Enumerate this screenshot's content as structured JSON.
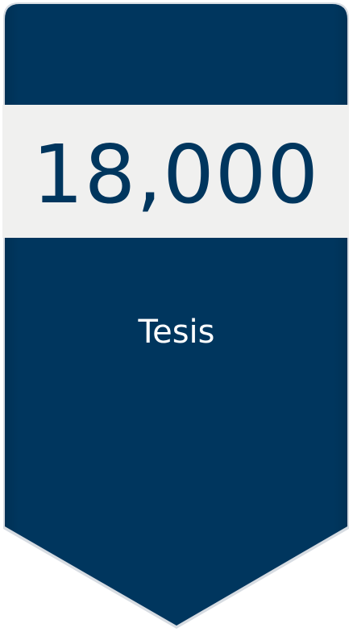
{
  "badge": {
    "value": "18,000",
    "label": "Tesis"
  },
  "colors": {
    "primary": "#00365E",
    "band": "#F0F0EF",
    "label_text": "#FFFFFF"
  }
}
